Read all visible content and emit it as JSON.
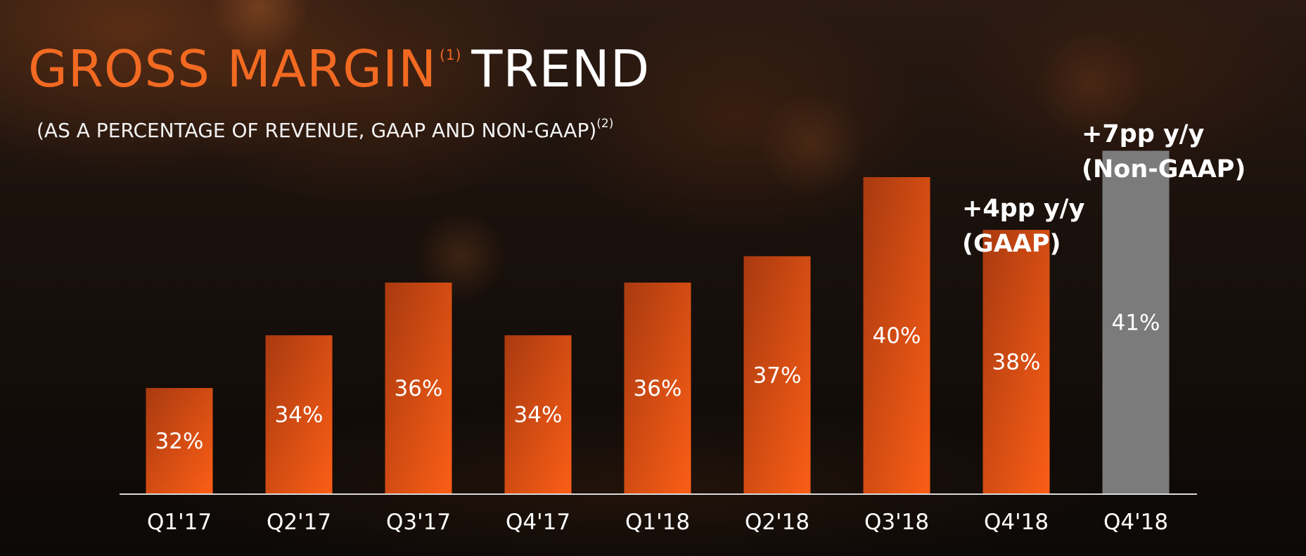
{
  "slide": {
    "title_accent": "GROSS MARGIN",
    "title_sup": "(1)",
    "title_rest": "TREND",
    "subtitle": "(AS A PERCENTAGE OF REVENUE, GAAP AND NON-GAAP)",
    "subtitle_sup": "(2)"
  },
  "annotations": {
    "gaap_line1": "+4pp y/y",
    "gaap_line2": "(GAAP)",
    "nongaap_line1": "+7pp y/y",
    "nongaap_line2": "(Non-GAAP)"
  },
  "colors": {
    "accent": "#f26a22",
    "bar_gradient_start": "#a93a10",
    "bar_gradient_end": "#fb5e16",
    "non_gaap_bar": "#7b7b7b",
    "baseline": "#d9d9d9"
  },
  "chart_data": {
    "type": "bar",
    "title": "GROSS MARGIN TREND",
    "subtitle": "(AS A PERCENTAGE OF REVENUE, GAAP AND NON-GAAP)",
    "xlabel": "",
    "ylabel": "",
    "ylim": [
      28,
      44
    ],
    "grid": false,
    "legend": "none",
    "categories": [
      "Q1'17",
      "Q2'17",
      "Q3'17",
      "Q4'17",
      "Q1'18",
      "Q2'18",
      "Q3'18",
      "Q4'18",
      "Q4'18"
    ],
    "values": [
      32,
      34,
      36,
      34,
      36,
      37,
      40,
      38,
      41
    ],
    "value_labels": [
      "32%",
      "34%",
      "36%",
      "34%",
      "36%",
      "37%",
      "40%",
      "38%",
      "41%"
    ],
    "bar_styles": [
      "gaap",
      "gaap",
      "gaap",
      "gaap",
      "gaap",
      "gaap",
      "gaap",
      "gaap",
      "non-gaap"
    ]
  }
}
